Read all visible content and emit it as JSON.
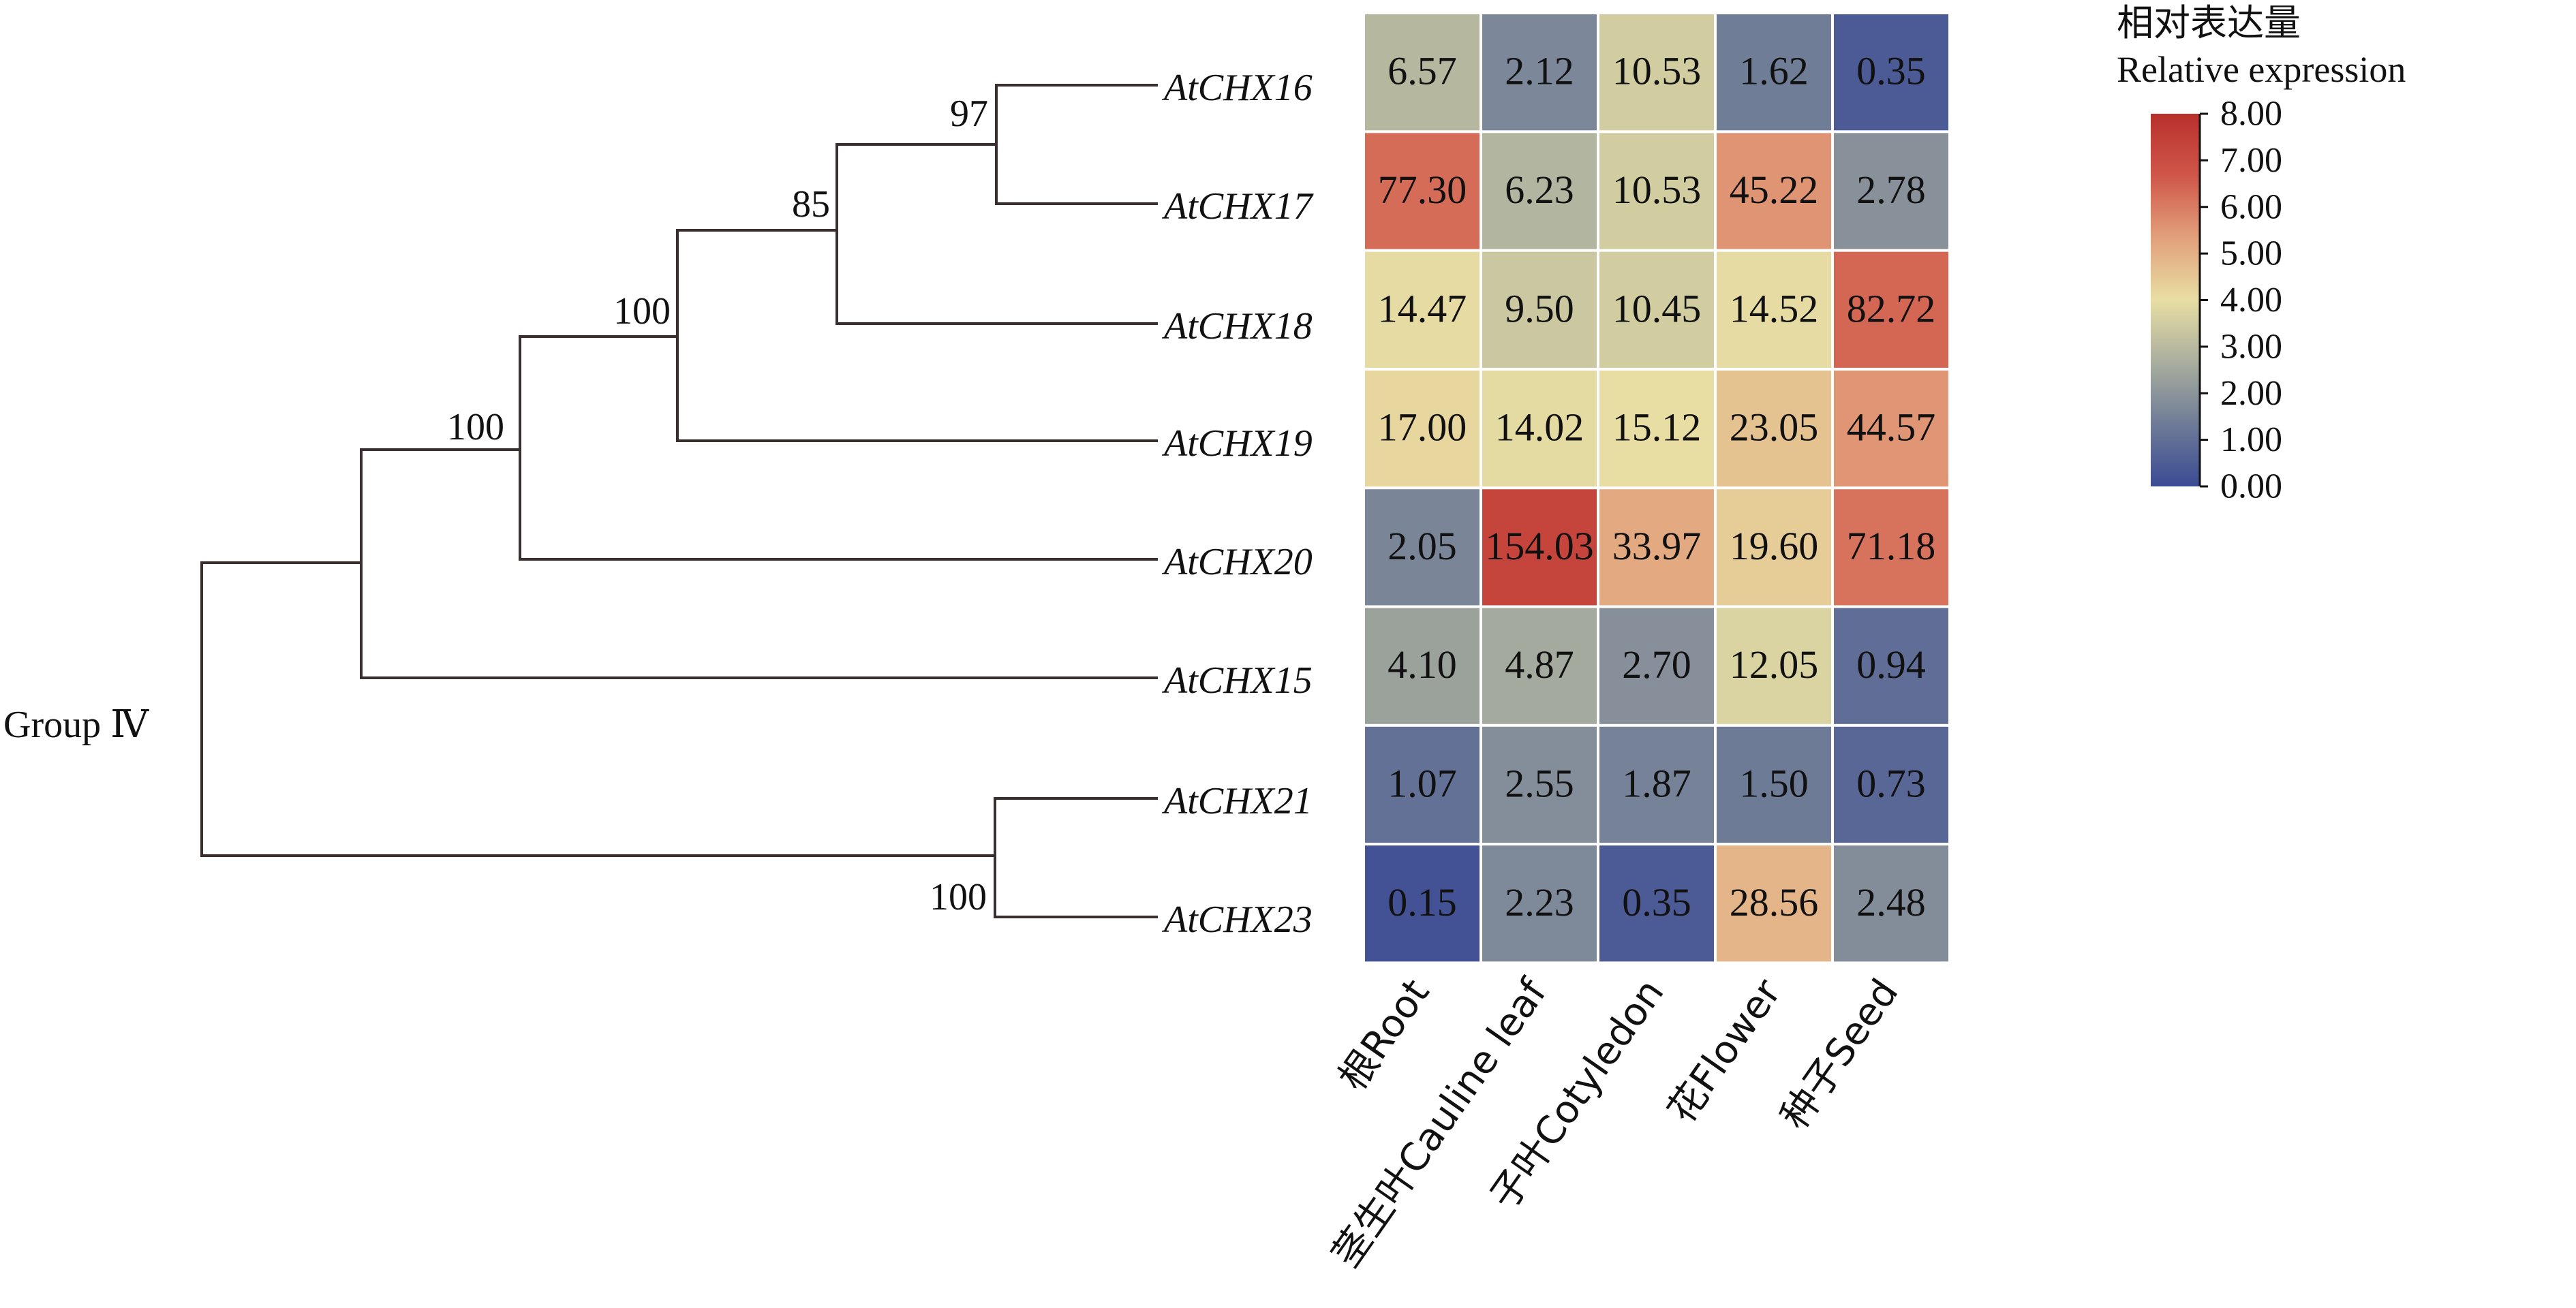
{
  "chart_data": {
    "type": "heatmap",
    "title": "",
    "group_label": "Group Ⅳ",
    "rows": [
      "AtCHX16",
      "AtCHX17",
      "AtCHX18",
      "AtCHX19",
      "AtCHX20",
      "AtCHX15",
      "AtCHX21",
      "AtCHX23"
    ],
    "columns": [
      "根Root",
      "茎生叶Cauline leaf",
      "子叶Cotyledon",
      "花Flower",
      "种子Seed"
    ],
    "values": [
      [
        6.57,
        2.12,
        10.53,
        1.62,
        0.35
      ],
      [
        77.3,
        6.23,
        10.53,
        45.22,
        2.78
      ],
      [
        14.47,
        9.5,
        10.45,
        14.52,
        82.72
      ],
      [
        17.0,
        14.02,
        15.12,
        23.05,
        44.57
      ],
      [
        2.05,
        154.03,
        33.97,
        19.6,
        71.18
      ],
      [
        4.1,
        4.87,
        2.7,
        12.05,
        0.94
      ],
      [
        1.07,
        2.55,
        1.87,
        1.5,
        0.73
      ],
      [
        0.15,
        2.23,
        0.35,
        28.56,
        2.48
      ]
    ],
    "value_labels": [
      [
        "6.57",
        "2.12",
        "10.53",
        "1.62",
        "0.35"
      ],
      [
        "77.30",
        "6.23",
        "10.53",
        "45.22",
        "2.78"
      ],
      [
        "14.47",
        "9.50",
        "10.45",
        "14.52",
        "82.72"
      ],
      [
        "17.00",
        "14.02",
        "15.12",
        "23.05",
        "44.57"
      ],
      [
        "2.05",
        "154.03",
        "33.97",
        "19.60",
        "71.18"
      ],
      [
        "4.10",
        "4.87",
        "2.70",
        "12.05",
        "0.94"
      ],
      [
        "1.07",
        "2.55",
        "1.87",
        "1.50",
        "0.73"
      ],
      [
        "0.15",
        "2.23",
        "0.35",
        "28.56",
        "2.48"
      ]
    ],
    "color_scale": {
      "transform": "log2(value+1)",
      "title_cn": "相对表达量",
      "title_en": "Relative expression",
      "range": [
        0,
        8
      ],
      "ticks": [
        "8.00",
        "7.00",
        "6.00",
        "5.00",
        "4.00",
        "3.00",
        "2.00",
        "1.00",
        "0.00"
      ],
      "colors": [
        "#3b4b94",
        "#6e7b97",
        "#a9ae9e",
        "#e8dea3",
        "#e2a07b",
        "#d0574a",
        "#b8302c"
      ]
    },
    "tree": {
      "newick": "((((((AtCHX16,AtCHX17)97,AtCHX18)85,AtCHX19)100,AtCHX20)100,AtCHX15),(AtCHX21,AtCHX23)100);",
      "bootstrap_labels": [
        "97",
        "85",
        "100",
        "100",
        "100"
      ]
    },
    "legend_position": "top-right"
  }
}
